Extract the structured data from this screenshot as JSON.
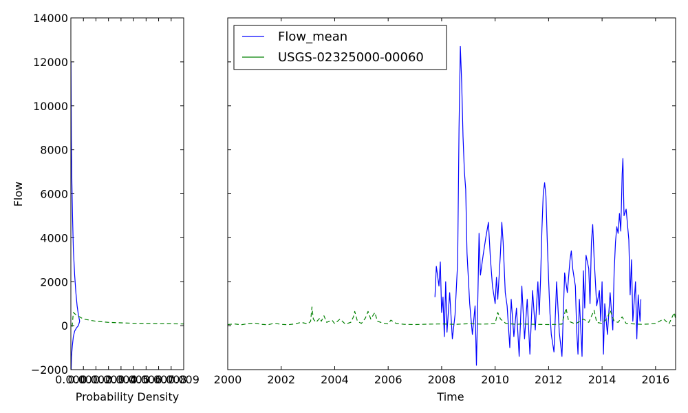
{
  "chart_data": [
    {
      "type": "line",
      "xlabel": "Probability Density",
      "ylabel": "Flow",
      "xlim": [
        0,
        0.009
      ],
      "ylim": [
        -2000,
        14000
      ],
      "xticks": [
        "0.000",
        "0.001",
        "0.002",
        "0.003",
        "0.004",
        "0.005",
        "0.006",
        "0.007",
        "0.008",
        "0.009"
      ],
      "yticks": [
        "−2000",
        "0",
        "2000",
        "4000",
        "6000",
        "8000",
        "10000",
        "12000",
        "14000"
      ],
      "series": [
        {
          "name": "Flow_mean",
          "color": "#0000ff",
          "linestyle": "solid",
          "points": [
            [
              2e-05,
              -2000
            ],
            [
              5e-05,
              -1400
            ],
            [
              0.00012,
              -900
            ],
            [
              0.0002,
              -500
            ],
            [
              0.0003,
              -250
            ],
            [
              0.00045,
              -100
            ],
            [
              0.0006,
              0
            ],
            [
              0.0007,
              200
            ],
            [
              0.0006,
              500
            ],
            [
              0.0005,
              900
            ],
            [
              0.0004,
              1500
            ],
            [
              0.0003,
              2300
            ],
            [
              0.0002,
              3500
            ],
            [
              0.00013,
              5000
            ],
            [
              8e-05,
              6500
            ],
            [
              4e-05,
              8500
            ],
            [
              2e-05,
              10500
            ],
            [
              1e-05,
              12000
            ]
          ]
        },
        {
          "name": "USGS-02325000-00060",
          "color": "#008000",
          "linestyle": "dashed",
          "points": [
            [
              0.0001,
              -50
            ],
            [
              0.0002,
              600
            ],
            [
              0.0004,
              500
            ],
            [
              0.0007,
              400
            ],
            [
              0.001,
              300
            ],
            [
              0.0015,
              250
            ],
            [
              0.002,
              200
            ],
            [
              0.003,
              150
            ],
            [
              0.004,
              130
            ],
            [
              0.005,
              110
            ],
            [
              0.006,
              100
            ],
            [
              0.007,
              90
            ],
            [
              0.008,
              85
            ],
            [
              0.009,
              80
            ]
          ]
        }
      ]
    },
    {
      "type": "line",
      "xlabel": "Time",
      "ylabel": "",
      "xlim": [
        2000,
        2016.75
      ],
      "ylim": [
        -2000,
        14000
      ],
      "xticks": [
        "2000",
        "2002",
        "2004",
        "2006",
        "2008",
        "2010",
        "2012",
        "2014",
        "2016"
      ],
      "legend_position": "top-left",
      "series": [
        {
          "name": "Flow_mean",
          "color": "#0000ff",
          "linestyle": "solid",
          "points": [
            [
              2007.75,
              1300
            ],
            [
              2007.8,
              2700
            ],
            [
              2007.9,
              1800
            ],
            [
              2007.95,
              2900
            ],
            [
              2008.0,
              600
            ],
            [
              2008.05,
              1300
            ],
            [
              2008.1,
              -500
            ],
            [
              2008.15,
              2000
            ],
            [
              2008.2,
              -300
            ],
            [
              2008.3,
              1500
            ],
            [
              2008.4,
              -600
            ],
            [
              2008.5,
              500
            ],
            [
              2008.6,
              2900
            ],
            [
              2008.65,
              9000
            ],
            [
              2008.7,
              12700
            ],
            [
              2008.75,
              11000
            ],
            [
              2008.8,
              8600
            ],
            [
              2008.85,
              7000
            ],
            [
              2008.9,
              6200
            ],
            [
              2008.95,
              3300
            ],
            [
              2009.05,
              1000
            ],
            [
              2009.15,
              -400
            ],
            [
              2009.25,
              900
            ],
            [
              2009.3,
              -1800
            ],
            [
              2009.35,
              1000
            ],
            [
              2009.4,
              4200
            ],
            [
              2009.45,
              2300
            ],
            [
              2009.55,
              3200
            ],
            [
              2009.65,
              4000
            ],
            [
              2009.75,
              4700
            ],
            [
              2009.82,
              3100
            ],
            [
              2009.9,
              1800
            ],
            [
              2010.0,
              1000
            ],
            [
              2010.05,
              2200
            ],
            [
              2010.1,
              1200
            ],
            [
              2010.2,
              3300
            ],
            [
              2010.25,
              4700
            ],
            [
              2010.3,
              3800
            ],
            [
              2010.38,
              1500
            ],
            [
              2010.45,
              900
            ],
            [
              2010.55,
              -1000
            ],
            [
              2010.6,
              1200
            ],
            [
              2010.7,
              -500
            ],
            [
              2010.8,
              800
            ],
            [
              2010.9,
              -1400
            ],
            [
              2011.0,
              1800
            ],
            [
              2011.1,
              -600
            ],
            [
              2011.2,
              1200
            ],
            [
              2011.3,
              -1300
            ],
            [
              2011.4,
              1600
            ],
            [
              2011.5,
              -200
            ],
            [
              2011.6,
              2000
            ],
            [
              2011.65,
              500
            ],
            [
              2011.7,
              2100
            ],
            [
              2011.75,
              4400
            ],
            [
              2011.8,
              6000
            ],
            [
              2011.85,
              6500
            ],
            [
              2011.9,
              5900
            ],
            [
              2011.95,
              3900
            ],
            [
              2012.0,
              2100
            ],
            [
              2012.05,
              600
            ],
            [
              2012.1,
              -400
            ],
            [
              2012.2,
              -1200
            ],
            [
              2012.3,
              2000
            ],
            [
              2012.4,
              -300
            ],
            [
              2012.5,
              -1400
            ],
            [
              2012.55,
              600
            ],
            [
              2012.6,
              2400
            ],
            [
              2012.7,
              1500
            ],
            [
              2012.8,
              3000
            ],
            [
              2012.85,
              3400
            ],
            [
              2012.9,
              2600
            ],
            [
              2013.0,
              1800
            ],
            [
              2013.05,
              -200
            ],
            [
              2013.1,
              -1300
            ],
            [
              2013.15,
              1200
            ],
            [
              2013.25,
              -1400
            ],
            [
              2013.3,
              2500
            ],
            [
              2013.35,
              800
            ],
            [
              2013.4,
              3200
            ],
            [
              2013.5,
              2600
            ],
            [
              2013.55,
              1000
            ],
            [
              2013.6,
              3800
            ],
            [
              2013.65,
              4600
            ],
            [
              2013.7,
              3100
            ],
            [
              2013.8,
              900
            ],
            [
              2013.9,
              1600
            ],
            [
              2013.95,
              200
            ],
            [
              2014.0,
              2000
            ],
            [
              2014.05,
              -1300
            ],
            [
              2014.1,
              1000
            ],
            [
              2014.2,
              -400
            ],
            [
              2014.3,
              1500
            ],
            [
              2014.4,
              -200
            ],
            [
              2014.45,
              2400
            ],
            [
              2014.5,
              3800
            ],
            [
              2014.55,
              4500
            ],
            [
              2014.6,
              4200
            ],
            [
              2014.65,
              5100
            ],
            [
              2014.7,
              4300
            ],
            [
              2014.75,
              6900
            ],
            [
              2014.78,
              7600
            ],
            [
              2014.82,
              5000
            ],
            [
              2014.9,
              5300
            ],
            [
              2015.0,
              3900
            ],
            [
              2015.05,
              1400
            ],
            [
              2015.1,
              3000
            ],
            [
              2015.15,
              200
            ],
            [
              2015.25,
              2000
            ],
            [
              2015.3,
              -600
            ],
            [
              2015.35,
              1400
            ],
            [
              2015.42,
              200
            ],
            [
              2015.45,
              1200
            ]
          ]
        },
        {
          "name": "USGS-02325000-00060",
          "color": "#008000",
          "linestyle": "dashed",
          "points": [
            [
              2000.0,
              50
            ],
            [
              2000.25,
              80
            ],
            [
              2000.5,
              40
            ],
            [
              2000.75,
              90
            ],
            [
              2001.0,
              120
            ],
            [
              2001.25,
              60
            ],
            [
              2001.5,
              40
            ],
            [
              2001.75,
              110
            ],
            [
              2002.0,
              60
            ],
            [
              2002.25,
              40
            ],
            [
              2002.5,
              80
            ],
            [
              2002.75,
              150
            ],
            [
              2003.0,
              80
            ],
            [
              2003.1,
              200
            ],
            [
              2003.15,
              850
            ],
            [
              2003.2,
              300
            ],
            [
              2003.3,
              150
            ],
            [
              2003.45,
              350
            ],
            [
              2003.5,
              200
            ],
            [
              2003.6,
              450
            ],
            [
              2003.7,
              150
            ],
            [
              2003.9,
              250
            ],
            [
              2004.0,
              90
            ],
            [
              2004.2,
              300
            ],
            [
              2004.4,
              70
            ],
            [
              2004.6,
              150
            ],
            [
              2004.7,
              400
            ],
            [
              2004.75,
              650
            ],
            [
              2004.85,
              200
            ],
            [
              2005.0,
              100
            ],
            [
              2005.15,
              350
            ],
            [
              2005.25,
              650
            ],
            [
              2005.35,
              300
            ],
            [
              2005.5,
              600
            ],
            [
              2005.6,
              200
            ],
            [
              2005.8,
              120
            ],
            [
              2006.0,
              80
            ],
            [
              2006.1,
              250
            ],
            [
              2006.3,
              100
            ],
            [
              2006.6,
              60
            ],
            [
              2007.0,
              50
            ],
            [
              2007.5,
              70
            ],
            [
              2008.0,
              80
            ],
            [
              2008.5,
              60
            ],
            [
              2009.0,
              90
            ],
            [
              2009.5,
              70
            ],
            [
              2009.8,
              80
            ],
            [
              2010.0,
              100
            ],
            [
              2010.1,
              600
            ],
            [
              2010.2,
              300
            ],
            [
              2010.4,
              100
            ],
            [
              2010.8,
              60
            ],
            [
              2011.0,
              80
            ],
            [
              2011.5,
              60
            ],
            [
              2012.0,
              50
            ],
            [
              2012.5,
              70
            ],
            [
              2012.65,
              800
            ],
            [
              2012.75,
              200
            ],
            [
              2013.0,
              80
            ],
            [
              2013.3,
              300
            ],
            [
              2013.5,
              150
            ],
            [
              2013.7,
              700
            ],
            [
              2013.8,
              150
            ],
            [
              2014.0,
              100
            ],
            [
              2014.2,
              350
            ],
            [
              2014.3,
              700
            ],
            [
              2014.45,
              200
            ],
            [
              2014.6,
              150
            ],
            [
              2014.75,
              400
            ],
            [
              2014.9,
              100
            ],
            [
              2015.2,
              80
            ],
            [
              2015.5,
              60
            ],
            [
              2015.8,
              80
            ],
            [
              2016.0,
              100
            ],
            [
              2016.3,
              300
            ],
            [
              2016.5,
              80
            ],
            [
              2016.7,
              600
            ],
            [
              2016.75,
              300
            ]
          ]
        }
      ]
    }
  ]
}
